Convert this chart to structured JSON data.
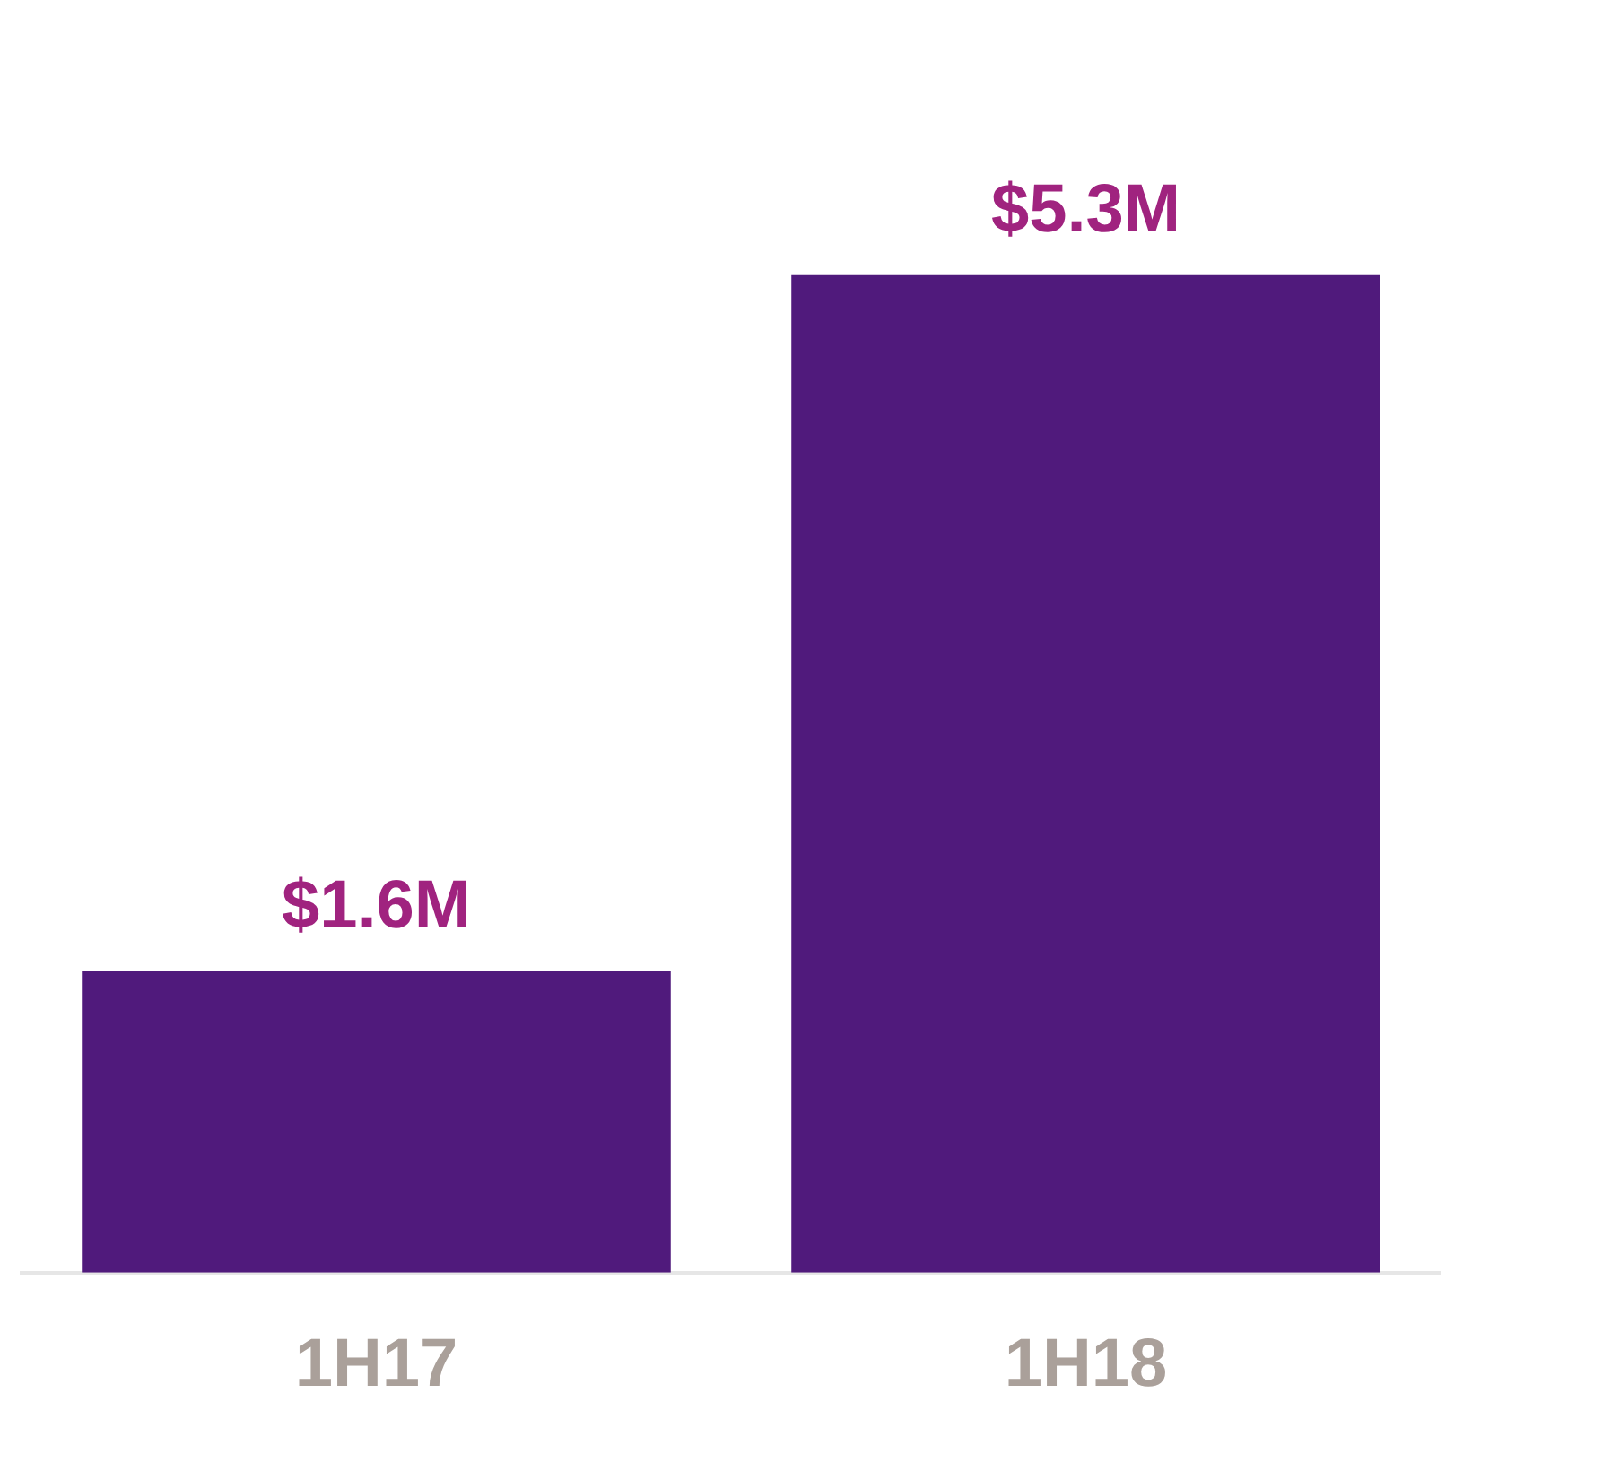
{
  "chart_data": {
    "type": "bar",
    "categories": [
      "1H17",
      "1H18"
    ],
    "values": [
      1.6,
      5.3
    ],
    "color": "#501a7c",
    "value_labels": [
      "$1.6M",
      "$5.3M"
    ]
  }
}
